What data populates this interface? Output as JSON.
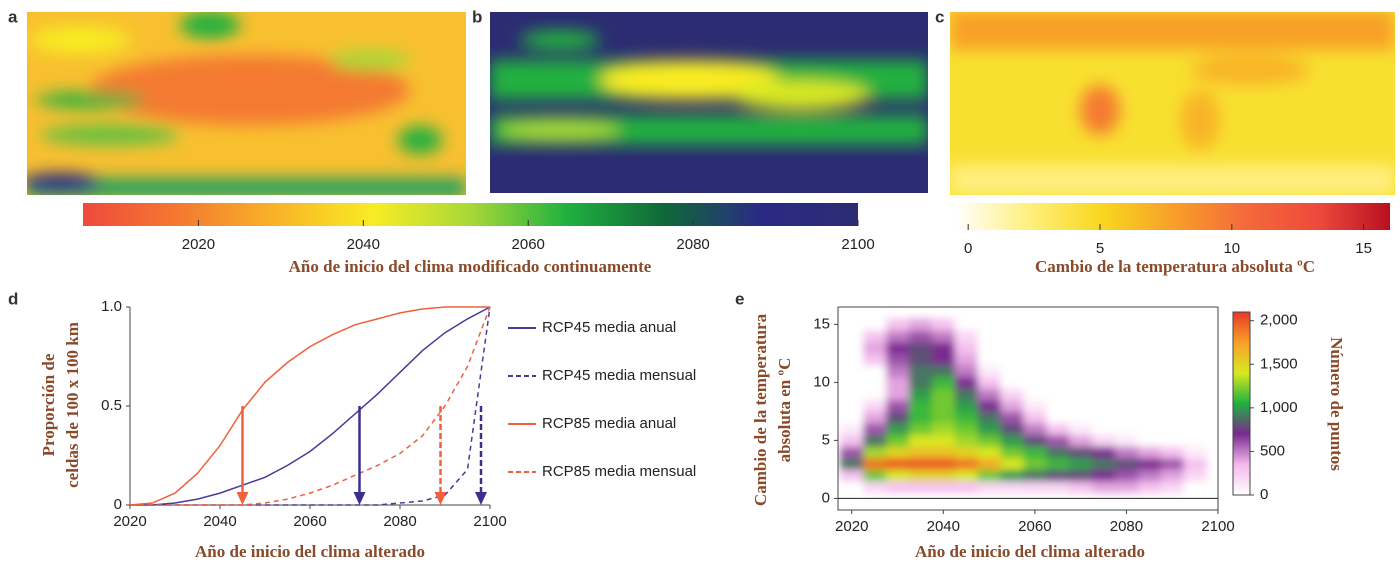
{
  "chart_data": [
    {
      "type": "colorbar",
      "panels": [
        "a",
        "b"
      ],
      "xlim": [
        2006,
        2100
      ],
      "xticks": [
        2020,
        2040,
        2060,
        2080,
        2100
      ],
      "xlabel": "Año de inicio del clima modificado continuamente",
      "colors": [
        "#ee4a3c",
        "#f47a30",
        "#f8b428",
        "#f8ec24",
        "#a8d838",
        "#20b040",
        "#106838",
        "#2a2a86",
        "#2c2c72"
      ]
    },
    {
      "type": "colorbar",
      "panels": [
        "c"
      ],
      "xlim": [
        -0.5,
        16
      ],
      "xticks": [
        0,
        5,
        10,
        15
      ],
      "xlabel": "Cambio de la temperatura absoluta ºC",
      "colors": [
        "#ffffff",
        "#fff080",
        "#f8d820",
        "#f8a028",
        "#f46a3a",
        "#ee4a3c",
        "#b81020"
      ]
    },
    {
      "type": "line",
      "panel": "d",
      "xlim": [
        2020,
        2100
      ],
      "ylim": [
        0,
        1
      ],
      "xticks": [
        2020,
        2040,
        2060,
        2080,
        2100
      ],
      "yticks": [
        0,
        0.5,
        {
          "value": 1,
          "label": "1.0"
        }
      ],
      "xlabel": "Año de inicio del clima alterado",
      "ylabel": [
        "Proporción de",
        "celdas de 100 x 100 km"
      ],
      "x": [
        2020,
        2025,
        2030,
        2035,
        2040,
        2045,
        2050,
        2055,
        2060,
        2065,
        2070,
        2075,
        2080,
        2085,
        2090,
        2095,
        2100
      ],
      "series": [
        {
          "name": "RCP45 media anual",
          "color": "#4a3a9a",
          "dash": false,
          "values": [
            0,
            0,
            0.01,
            0.03,
            0.06,
            0.1,
            0.14,
            0.2,
            0.27,
            0.36,
            0.46,
            0.56,
            0.67,
            0.78,
            0.87,
            0.94,
            1
          ]
        },
        {
          "name": "RCP45 media mensual",
          "color": "#4a3a9a",
          "dash": true,
          "values": [
            0,
            0,
            0,
            0,
            0,
            0,
            0,
            0,
            0,
            0,
            0,
            0,
            0.01,
            0.02,
            0.05,
            0.18,
            1
          ]
        },
        {
          "name": "RCP85 media anual",
          "color": "#f0603c",
          "dash": false,
          "values": [
            0,
            0.01,
            0.06,
            0.16,
            0.3,
            0.48,
            0.62,
            0.72,
            0.8,
            0.86,
            0.91,
            0.94,
            0.97,
            0.99,
            1,
            1,
            1
          ]
        },
        {
          "name": "RCP85 media mensual",
          "color": "#f0603c",
          "dash": true,
          "values": [
            0,
            0,
            0,
            0,
            0,
            0,
            0.01,
            0.03,
            0.06,
            0.1,
            0.15,
            0.2,
            0.26,
            0.35,
            0.5,
            0.7,
            1
          ]
        }
      ],
      "arrows": [
        {
          "x": 2045,
          "y0": 0.5,
          "y1": 0,
          "color": "#f0603c",
          "dashed": false
        },
        {
          "x": 2071,
          "y0": 0.5,
          "y1": 0,
          "color": "#3a3090",
          "dashed": false
        },
        {
          "x": 2089,
          "y0": 0.5,
          "y1": 0,
          "color": "#f0603c",
          "dashed": true
        },
        {
          "x": 2098,
          "y0": 0.5,
          "y1": 0,
          "color": "#3a3090",
          "dashed": true
        }
      ]
    },
    {
      "type": "heatmap",
      "panel": "e",
      "xlim": [
        2017,
        2100
      ],
      "ylim": [
        -1,
        16.5
      ],
      "xticks": [
        2020,
        2040,
        2060,
        2080,
        2100
      ],
      "yticks": [
        0,
        5,
        10,
        15
      ],
      "xlabel": "Año de inicio del clima alterado",
      "ylabel": [
        "Cambio de la temperatura",
        "absoluta en ºC"
      ],
      "clabel": "Número de puntos",
      "clim": [
        0,
        2100
      ],
      "cticks": [
        0,
        500,
        {
          "value": 1000,
          "label": "1,000"
        },
        {
          "value": 1500,
          "label": "1,500"
        },
        {
          "value": 2000,
          "label": "2,000"
        }
      ],
      "colors": [
        "#ffffff",
        "#f4b8ec",
        "#7a2a90",
        "#20b040",
        "#d8e820",
        "#f8a028",
        "#e83828"
      ],
      "xbins": [
        2017.5,
        2022.5,
        2027.5,
        2032.5,
        2037.5,
        2042.5,
        2047.5,
        2052.5,
        2057.5,
        2062.5,
        2067.5,
        2072.5,
        2077.5,
        2082.5,
        2087.5,
        2092.5,
        2097.5
      ],
      "ybins": [
        0.5,
        1.5,
        2.5,
        3.5,
        4.5,
        5.5,
        6.5,
        7.5,
        8.5,
        9.5,
        10.5,
        11.5,
        12.5,
        13.5,
        14.5,
        15.5
      ],
      "z": [
        [
          0,
          200,
          300,
          300,
          300,
          300,
          200,
          200,
          200,
          200,
          300,
          400,
          400,
          300,
          200,
          0
        ],
        [
          300,
          1200,
          1400,
          1500,
          1500,
          1400,
          1200,
          1000,
          900,
          800,
          800,
          700,
          600,
          500,
          400,
          200
        ],
        [
          900,
          1900,
          2000,
          2000,
          2000,
          1900,
          1700,
          1400,
          1200,
          1100,
          1000,
          900,
          800,
          700,
          600,
          300
        ],
        [
          600,
          1300,
          1500,
          1600,
          1600,
          1500,
          1400,
          1200,
          1100,
          900,
          800,
          700,
          500,
          400,
          300,
          100
        ],
        [
          300,
          900,
          1200,
          1400,
          1400,
          1300,
          1200,
          1000,
          800,
          600,
          400,
          200,
          100,
          0,
          0,
          0
        ],
        [
          100,
          600,
          1000,
          1200,
          1300,
          1200,
          1000,
          800,
          500,
          300,
          100,
          0,
          0,
          0,
          0,
          0
        ],
        [
          0,
          400,
          800,
          1100,
          1200,
          1100,
          900,
          600,
          300,
          0,
          0,
          0,
          0,
          0,
          0,
          0
        ],
        [
          0,
          200,
          600,
          1100,
          1200,
          1000,
          700,
          400,
          100,
          0,
          0,
          0,
          0,
          0,
          0,
          0
        ],
        [
          0,
          0,
          400,
          1000,
          1200,
          900,
          500,
          200,
          0,
          0,
          0,
          0,
          0,
          0,
          0,
          0
        ],
        [
          0,
          0,
          400,
          900,
          1100,
          700,
          300,
          0,
          0,
          0,
          0,
          0,
          0,
          0,
          0,
          0
        ],
        [
          0,
          0,
          500,
          900,
          900,
          500,
          100,
          0,
          0,
          0,
          0,
          0,
          0,
          0,
          0,
          0
        ],
        [
          0,
          300,
          600,
          800,
          700,
          400,
          0,
          0,
          0,
          0,
          0,
          0,
          0,
          0,
          0,
          0
        ],
        [
          0,
          400,
          700,
          800,
          700,
          300,
          0,
          0,
          0,
          0,
          0,
          0,
          0,
          0,
          0,
          0
        ],
        [
          0,
          300,
          500,
          600,
          500,
          200,
          0,
          0,
          0,
          0,
          0,
          0,
          0,
          0,
          0,
          0
        ],
        [
          0,
          0,
          300,
          400,
          300,
          0,
          0,
          0,
          0,
          0,
          0,
          0,
          0,
          0,
          0,
          0
        ]
      ]
    }
  ]
}
